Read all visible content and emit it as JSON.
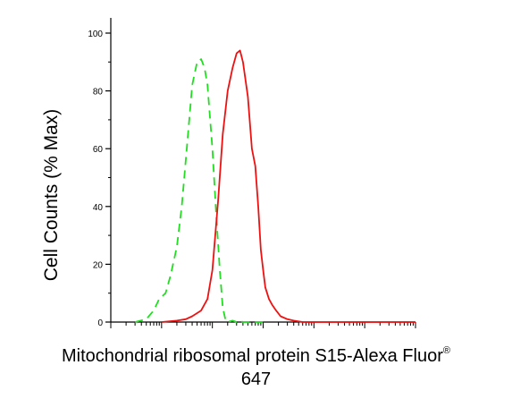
{
  "chart_data": {
    "type": "line",
    "title": "",
    "xlabel": "Mitochondrial ribosomal protein S15-Alexa Fluor",
    "xlabel_superscript": "®",
    "xlabel_line2": "647",
    "ylabel": "Cell Counts (% Max)",
    "xscale": "log",
    "xlim": [
      1,
      1000000
    ],
    "ylim": [
      0,
      100
    ],
    "yticks": [
      0,
      20,
      40,
      60,
      80,
      100
    ],
    "ytick_labels": [
      "0",
      "20",
      "40",
      "60",
      "80",
      "100"
    ],
    "xtick_labels_shown": false,
    "grid": false,
    "legend": "none",
    "series": [
      {
        "style": "dashed",
        "color": "#22dd22",
        "x": [
          3,
          5,
          7,
          9,
          12,
          15,
          20,
          25,
          30,
          35,
          40,
          50,
          60,
          70,
          80,
          100,
          120,
          140,
          160,
          180,
          200,
          250,
          300,
          350,
          400,
          500,
          1000
        ],
        "y": [
          0,
          1,
          4,
          8,
          10,
          16,
          26,
          40,
          56,
          70,
          82,
          90,
          91,
          88,
          82,
          60,
          36,
          18,
          5,
          1,
          0,
          0.5,
          0,
          0.5,
          0,
          0,
          0
        ]
      },
      {
        "style": "solid",
        "color": "#ee1111",
        "x": [
          10,
          20,
          30,
          40,
          60,
          80,
          100,
          130,
          160,
          200,
          250,
          300,
          350,
          400,
          500,
          600,
          700,
          800,
          900,
          1000,
          1100,
          1300,
          1500,
          1800,
          2200,
          3000,
          4000,
          6000,
          10000,
          30000,
          100000,
          1000000
        ],
        "y": [
          0,
          0.5,
          1,
          2,
          4,
          8,
          18,
          42,
          65,
          80,
          88,
          93,
          94,
          90,
          78,
          60,
          54,
          40,
          25,
          18,
          12,
          8,
          6,
          4,
          2,
          1,
          0.5,
          0,
          0,
          0,
          0,
          0
        ]
      }
    ]
  }
}
